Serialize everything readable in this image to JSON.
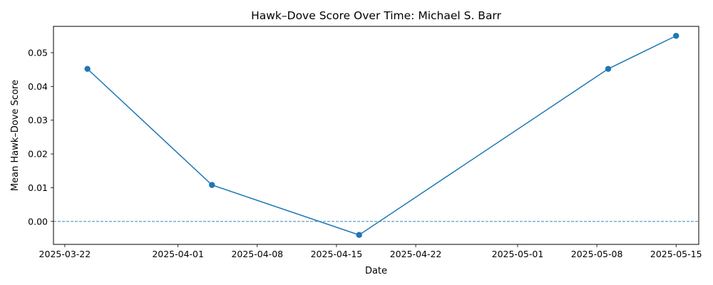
{
  "chart_data": {
    "type": "line",
    "title": "Hawk–Dove Score Over Time: Michael S. Barr",
    "xlabel": "Date",
    "ylabel": "Mean Hawk–Dove Score",
    "x_ticks": [
      "2025-03-22",
      "2025-04-01",
      "2025-04-08",
      "2025-04-15",
      "2025-04-22",
      "2025-05-01",
      "2025-05-08",
      "2025-05-15"
    ],
    "y_ticks": [
      "0.00",
      "0.01",
      "0.02",
      "0.03",
      "0.04",
      "0.05"
    ],
    "xlim": [
      "2025-03-21",
      "2025-05-17"
    ],
    "ylim": [
      -0.0068,
      0.0578
    ],
    "series": [
      {
        "x": [
          "2025-03-24",
          "2025-04-04",
          "2025-04-17",
          "2025-05-09",
          "2025-05-15"
        ],
        "y": [
          0.0452,
          0.0108,
          -0.004,
          0.0452,
          0.055
        ],
        "color": "#1f77b4",
        "marker": "circle"
      }
    ],
    "reference_line": {
      "y": 0,
      "style": "dashed",
      "color": "#1f77b4"
    },
    "grid": false,
    "legend": false
  }
}
